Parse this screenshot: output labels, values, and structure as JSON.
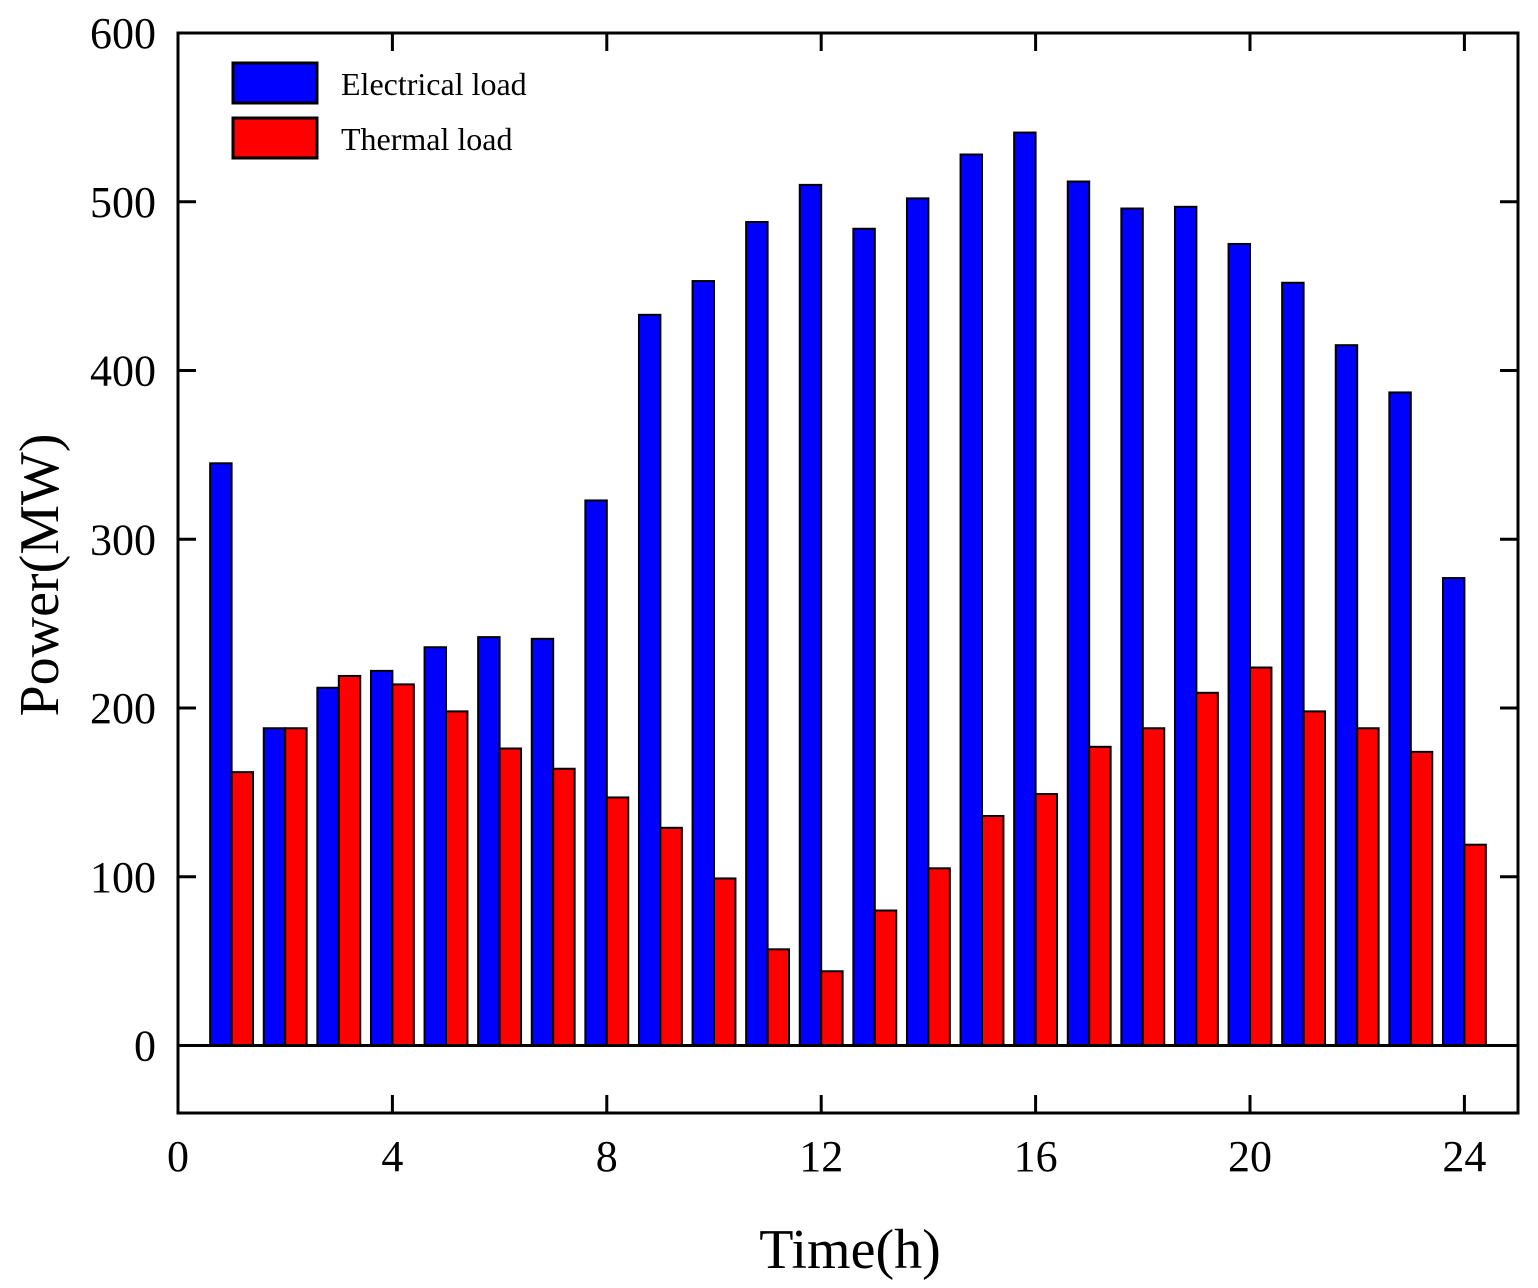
{
  "chart_data": {
    "type": "bar",
    "title": "",
    "xlabel": "Time(h)",
    "ylabel": "Power(MW)",
    "xlim": [
      0,
      25
    ],
    "ylim": [
      -40,
      600
    ],
    "xticks": [
      0,
      4,
      8,
      12,
      16,
      20,
      24
    ],
    "yticks": [
      0,
      100,
      200,
      300,
      400,
      500,
      600
    ],
    "grid": false,
    "legend_position": "top-left",
    "categories": [
      1,
      2,
      3,
      4,
      5,
      6,
      7,
      8,
      9,
      10,
      11,
      12,
      13,
      14,
      15,
      16,
      17,
      18,
      19,
      20,
      21,
      22,
      23,
      24
    ],
    "series": [
      {
        "name": "Electrical load",
        "color": "#0000ff",
        "values": [
          345,
          188,
          212,
          222,
          236,
          242,
          241,
          323,
          433,
          453,
          488,
          510,
          484,
          502,
          528,
          541,
          512,
          496,
          497,
          475,
          452,
          415,
          387,
          277
        ]
      },
      {
        "name": "Thermal load",
        "color": "#ff0000",
        "values": [
          162,
          188,
          219,
          214,
          198,
          176,
          164,
          147,
          129,
          99,
          57,
          44,
          80,
          105,
          136,
          149,
          177,
          188,
          209,
          224,
          198,
          188,
          174,
          119
        ]
      }
    ]
  }
}
